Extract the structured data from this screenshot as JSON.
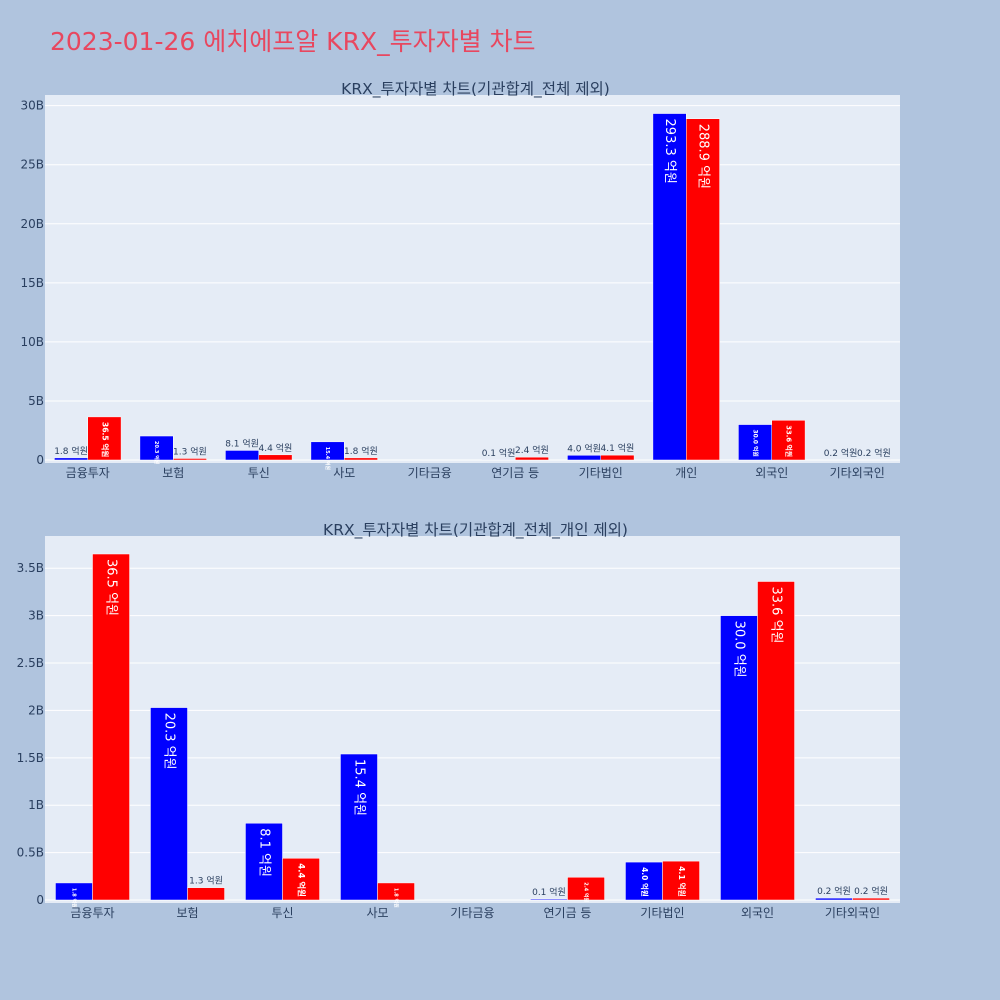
{
  "page": {
    "title": "2023-01-26 에치에프알 KRX_투자자별 차트",
    "colors": {
      "background": "#b0c4de",
      "plot_bg": "#e5ecf6",
      "grid": "#ffffff",
      "title": "#e8475f",
      "buy": "#0000ff",
      "sell": "#ff0000"
    }
  },
  "chart_data": [
    {
      "type": "bar",
      "title": "KRX_투자자별 차트(기관합계_전체 제외)",
      "categories": [
        "금융투자",
        "보험",
        "투신",
        "사모",
        "기타금융",
        "연기금 등",
        "기타법인",
        "개인",
        "외국인",
        "기타외국인"
      ],
      "series": [
        {
          "color": "#0000ff",
          "values": [
            0.18,
            2.03,
            0.81,
            1.54,
            0,
            0.01,
            0.4,
            29.33,
            3.0,
            0.02
          ],
          "labels": [
            "1.8 억원",
            "20.3 억원",
            "8.1 억원",
            "15.4 억원",
            "",
            "0.1 억원",
            "4.0 억원",
            "293.3 억원",
            "30.0 억원",
            "0.2 억원"
          ]
        },
        {
          "color": "#ff0000",
          "values": [
            3.65,
            0.13,
            0.44,
            0.18,
            0,
            0.24,
            0.41,
            28.89,
            3.36,
            0.02
          ],
          "labels": [
            "36.5 억원",
            "1.3 억원",
            "4.4 억원",
            "1.8 억원",
            "",
            "2.4 억원",
            "4.1 억원",
            "288.9 억원",
            "33.6 억원",
            "0.2 억원"
          ]
        }
      ],
      "yticks": [
        "0",
        "5B",
        "10B",
        "15B",
        "20B",
        "25B",
        "30B"
      ],
      "ytick_values": [
        0,
        5,
        10,
        15,
        20,
        25,
        30
      ],
      "ylim": [
        0,
        30.9
      ],
      "value_unit": "B",
      "grid": true
    },
    {
      "type": "bar",
      "title": "KRX_투자자별 차트(기관합계_전체_개인 제외)",
      "categories": [
        "금융투자",
        "보험",
        "투신",
        "사모",
        "기타금융",
        "연기금 등",
        "기타법인",
        "외국인",
        "기타외국인"
      ],
      "series": [
        {
          "color": "#0000ff",
          "values": [
            0.18,
            2.03,
            0.81,
            1.54,
            0,
            0.01,
            0.4,
            3.0,
            0.02
          ],
          "labels": [
            "1.8 억원",
            "20.3 억원",
            "8.1 억원",
            "15.4 억원",
            "",
            "0.1 억원",
            "4.0 억원",
            "30.0 억원",
            "0.2 억원"
          ]
        },
        {
          "color": "#ff0000",
          "values": [
            3.65,
            0.13,
            0.44,
            0.18,
            0,
            0.24,
            0.41,
            3.36,
            0.02
          ],
          "labels": [
            "36.5 억원",
            "1.3 억원",
            "4.4 억원",
            "1.8 억원",
            "",
            "2.4 억원",
            "4.1 억원",
            "33.6 억원",
            "0.2 억원"
          ]
        }
      ],
      "yticks": [
        "0",
        "0.5B",
        "1B",
        "1.5B",
        "2B",
        "2.5B",
        "3B",
        "3.5B"
      ],
      "ytick_values": [
        0,
        0.5,
        1,
        1.5,
        2,
        2.5,
        3,
        3.5
      ],
      "ylim": [
        0,
        3.84
      ],
      "value_unit": "B",
      "grid": true
    }
  ]
}
